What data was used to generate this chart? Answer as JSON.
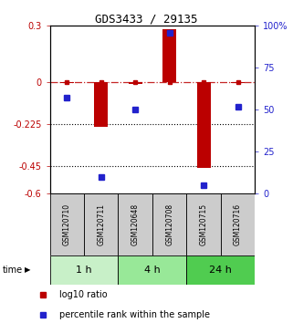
{
  "title": "GDS3433 / 29135",
  "samples": [
    "GSM120710",
    "GSM120711",
    "GSM120648",
    "GSM120708",
    "GSM120715",
    "GSM120716"
  ],
  "time_groups": [
    {
      "label": "1 h",
      "start": 0,
      "end": 1,
      "color": "#c8f0c8"
    },
    {
      "label": "4 h",
      "start": 2,
      "end": 3,
      "color": "#98e898"
    },
    {
      "label": "24 h",
      "start": 4,
      "end": 5,
      "color": "#50cc50"
    }
  ],
  "log10_ratio": [
    -0.005,
    -0.24,
    -0.01,
    0.28,
    -0.46,
    -0.005
  ],
  "percentile_rank": [
    57,
    10,
    50,
    96,
    5,
    52
  ],
  "left_ylim": [
    -0.6,
    0.3
  ],
  "right_ylim": [
    0,
    100
  ],
  "left_yticks": [
    0.3,
    0.0,
    -0.225,
    -0.45,
    -0.6
  ],
  "left_yticklabels": [
    "0.3",
    "0",
    "-0.225",
    "-0.45",
    "-0.6"
  ],
  "right_yticks": [
    100,
    75,
    50,
    25,
    0
  ],
  "right_yticklabels": [
    "100%",
    "75",
    "50",
    "25",
    "0"
  ],
  "hlines": [
    -0.225,
    -0.45
  ],
  "bar_color": "#bb0000",
  "blue_color": "#2222cc",
  "sample_bg_color": "#cccccc",
  "legend_red_label": "log10 ratio",
  "legend_blue_label": "percentile rank within the sample",
  "title_fontsize": 9,
  "tick_fontsize": 7,
  "sample_fontsize": 5.5,
  "time_fontsize": 8,
  "legend_fontsize": 7
}
